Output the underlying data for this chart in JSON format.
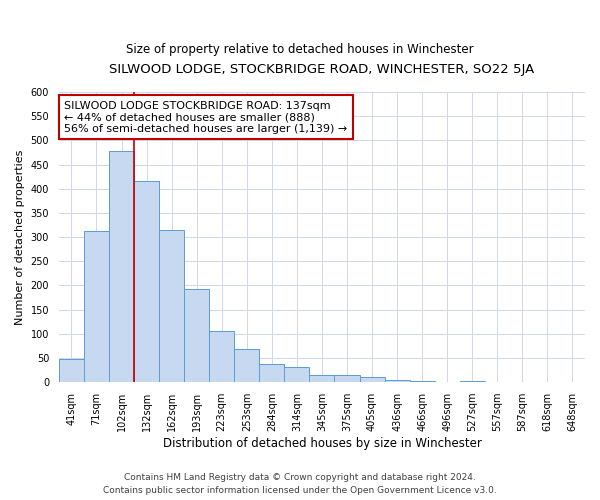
{
  "title": "SILWOOD LODGE, STOCKBRIDGE ROAD, WINCHESTER, SO22 5JA",
  "subtitle": "Size of property relative to detached houses in Winchester",
  "xlabel": "Distribution of detached houses by size in Winchester",
  "ylabel": "Number of detached properties",
  "bar_labels": [
    "41sqm",
    "71sqm",
    "102sqm",
    "132sqm",
    "162sqm",
    "193sqm",
    "223sqm",
    "253sqm",
    "284sqm",
    "314sqm",
    "345sqm",
    "375sqm",
    "405sqm",
    "436sqm",
    "466sqm",
    "496sqm",
    "527sqm",
    "557sqm",
    "587sqm",
    "618sqm",
    "648sqm"
  ],
  "bar_values": [
    48,
    312,
    478,
    415,
    315,
    192,
    105,
    68,
    37,
    32,
    14,
    15,
    10,
    5,
    2,
    0,
    2,
    0,
    0,
    0,
    1
  ],
  "bar_color": "#c6d9f0",
  "bar_edge_color": "#5b9bd5",
  "vline_color": "#c00000",
  "vline_bar_index": 3,
  "annotation_line1": "SILWOOD LODGE STOCKBRIDGE ROAD: 137sqm",
  "annotation_line2": "← 44% of detached houses are smaller (888)",
  "annotation_line3": "56% of semi-detached houses are larger (1,139) →",
  "ylim": [
    0,
    600
  ],
  "yticks": [
    0,
    50,
    100,
    150,
    200,
    250,
    300,
    350,
    400,
    450,
    500,
    550,
    600
  ],
  "footnote": "Contains HM Land Registry data © Crown copyright and database right 2024.\nContains public sector information licensed under the Open Government Licence v3.0.",
  "background_color": "#ffffff",
  "grid_color": "#d0d8e8",
  "title_fontsize": 9.5,
  "subtitle_fontsize": 8.5,
  "xlabel_fontsize": 8.5,
  "ylabel_fontsize": 8,
  "tick_fontsize": 7,
  "annotation_fontsize": 8,
  "footnote_fontsize": 6.5
}
